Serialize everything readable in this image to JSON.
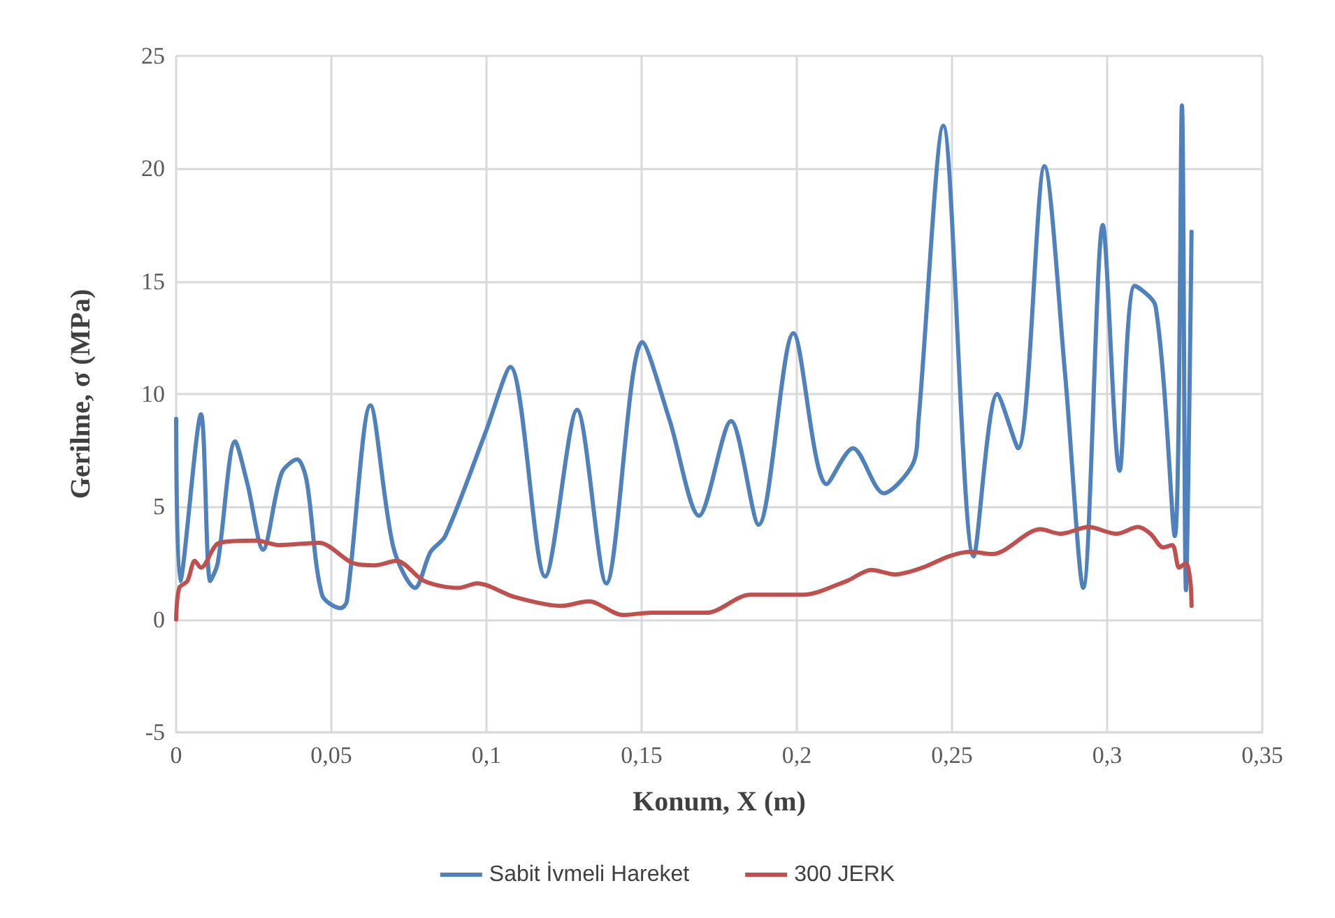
{
  "chart_data": {
    "type": "line",
    "xlabel": "Konum, X (m)",
    "ylabel": "Gerilme, σ (MPa)",
    "xlim": [
      0,
      0.35
    ],
    "xticks": [
      0,
      {
        "value": 0.05,
        "label": "0,05"
      },
      {
        "value": 0.1,
        "label": "0,1"
      },
      {
        "value": 0.15,
        "label": "0,15"
      },
      {
        "value": 0.2,
        "label": "0,2"
      },
      {
        "value": 0.25,
        "label": "0,25"
      },
      {
        "value": 0.3,
        "label": "0,3"
      },
      {
        "value": 0.35,
        "label": "0,35"
      }
    ],
    "ylim": [
      -5,
      25
    ],
    "yticks": [
      -5,
      0,
      5,
      10,
      15,
      20,
      25
    ],
    "grid": true,
    "legend": "bottom",
    "marker": "none",
    "line_style": "solid",
    "series": [
      {
        "name": "Sabit İvmeli Hareket",
        "color": "#4f81bd",
        "x": [
          0,
          0.0013,
          0.008,
          0.011,
          0.0134,
          0.019,
          0.023,
          0.028,
          0.034,
          0.039,
          0.042,
          0.047,
          0.053,
          0.055,
          0.0626,
          0.07,
          0.077,
          0.082,
          0.0867,
          0.0997,
          0.1077,
          0.1189,
          0.1292,
          0.1386,
          0.1502,
          0.1591,
          0.1685,
          0.1788,
          0.1877,
          0.1989,
          0.2096,
          0.2181,
          0.228,
          0.2374,
          0.2392,
          0.2472,
          0.257,
          0.2646,
          0.2713,
          0.2798,
          0.2865,
          0.2923,
          0.2986,
          0.304,
          0.3089,
          0.3156,
          0.3218,
          0.3241,
          0.3254,
          0.3272
        ],
        "values": [
          8.9,
          1.7,
          9.1,
          1.7,
          2.5,
          7.9,
          6,
          3.1,
          6.5,
          7.1,
          6.2,
          1.1,
          0.5,
          0.8,
          9.5,
          3.2,
          1.4,
          3,
          3.7,
          8.3,
          11.2,
          1.9,
          9.3,
          1.6,
          12.3,
          8.8,
          4.6,
          8.8,
          4.2,
          12.7,
          6,
          7.6,
          5.6,
          6.9,
          8.8,
          21.9,
          2.8,
          10,
          7.6,
          20.1,
          10.8,
          1.4,
          17.5,
          6.6,
          14.8,
          13.9,
          3.7,
          22.8,
          1.3,
          17.2
        ]
      },
      {
        "name": "300 JERK",
        "color": "#c0504d",
        "x": [
          0,
          0.001,
          0.0036,
          0.006,
          0.008,
          0.0139,
          0.026,
          0.033,
          0.046,
          0.057,
          0.064,
          0.071,
          0.08,
          0.091,
          0.097,
          0.109,
          0.124,
          0.133,
          0.144,
          0.153,
          0.171,
          0.185,
          0.202,
          0.216,
          0.224,
          0.2316,
          0.2405,
          0.249,
          0.256,
          0.263,
          0.2785,
          0.285,
          0.294,
          0.303,
          0.31,
          0.314,
          0.318,
          0.321,
          0.3232,
          0.3254,
          0.3268,
          0.3272
        ],
        "values": [
          0,
          1.4,
          1.7,
          2.6,
          2.3,
          3.4,
          3.5,
          3.3,
          3.4,
          2.5,
          2.4,
          2.6,
          1.7,
          1.4,
          1.6,
          1,
          0.6,
          0.8,
          0.2,
          0.3,
          0.3,
          1.1,
          1.1,
          1.7,
          2.2,
          2,
          2.3,
          2.8,
          3,
          2.9,
          4,
          3.8,
          4.1,
          3.8,
          4.1,
          3.8,
          3.2,
          3.3,
          2.3,
          2.5,
          1.7,
          0.6
        ]
      }
    ]
  }
}
